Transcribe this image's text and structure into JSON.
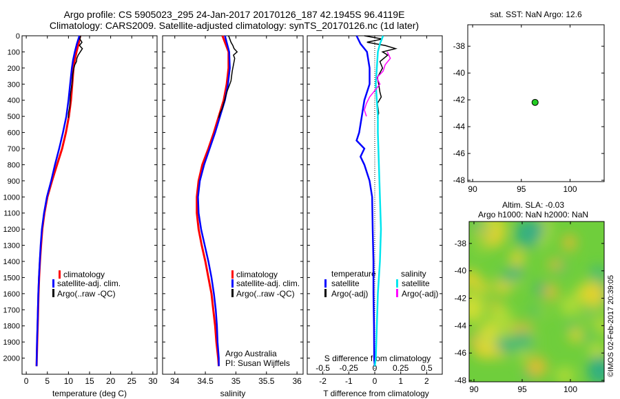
{
  "header": {
    "title_line1": "Argo profile: CS 5905023_295 24-Jan-2017 20170126_187 42.1945S 96.4119E",
    "title_line2": "Climatology: CARS2009. Satellite-adjusted climatology: synTS_20170126.nc (1d later)"
  },
  "panel_texts": {
    "argo_australia": "Argo Australia",
    "pi": "PI: Susan Wijffels",
    "s_diff_title": "S difference from climatology",
    "sst_title": "sat. SST: NaN Argo: 12.6",
    "sla_title_1": "Altim. SLA: -0.03",
    "sla_title_2": "Argo h1000: NaN h2000: NaN",
    "imos_stamp": "©IMOS 02-Feb-2017 20:39:05"
  },
  "colors": {
    "climatology": "#ff0000",
    "satellite": "#0000ff",
    "argo": "#000000",
    "sal_satellite": "#00e5ee",
    "sal_argo": "#ff00ff",
    "float_marker": "#22cc22"
  },
  "chart_data": [
    {
      "type": "line",
      "panel": "temperature",
      "xlabel": "temperature (deg C)",
      "ylabel": "",
      "xlim": [
        -1,
        31
      ],
      "ylim": [
        2100,
        0
      ],
      "xticks": [
        "0",
        "5",
        "10",
        "15",
        "20",
        "25",
        "30"
      ],
      "yticks": [
        "0",
        "100",
        "200",
        "300",
        "400",
        "500",
        "600",
        "700",
        "800",
        "900",
        "1000",
        "1100",
        "1200",
        "1300",
        "1400",
        "1500",
        "1600",
        "1700",
        "1800",
        "1900",
        "2000"
      ],
      "legend": [
        "climatology",
        "satellite-adj. clim.",
        "Argo(..raw -QC)"
      ],
      "series": [
        {
          "name": "climatology",
          "depth": [
            0,
            50,
            100,
            150,
            200,
            300,
            400,
            500,
            600,
            700,
            800,
            900,
            1000,
            1100,
            1200,
            1300,
            1400,
            1500,
            1600,
            1700,
            1800,
            1900,
            2000,
            2050
          ],
          "values": [
            12.8,
            12.4,
            11.9,
            11.5,
            11.2,
            10.9,
            10.6,
            10.1,
            9.4,
            8.5,
            7.3,
            6.1,
            5.0,
            4.3,
            3.8,
            3.5,
            3.25,
            3.05,
            2.9,
            2.8,
            2.7,
            2.6,
            2.5,
            2.45
          ]
        },
        {
          "name": "satellite-adj. clim.",
          "depth": [
            0,
            50,
            100,
            150,
            200,
            300,
            400,
            500,
            600,
            700,
            800,
            900,
            1000,
            1100,
            1200,
            1300,
            1400,
            1500,
            1600,
            1700,
            1800,
            1900,
            2000,
            2050
          ],
          "values": [
            12.6,
            12.0,
            11.5,
            11.1,
            10.8,
            10.4,
            10.0,
            9.5,
            8.7,
            7.8,
            6.8,
            5.9,
            4.9,
            4.2,
            3.7,
            3.4,
            3.2,
            3.0,
            2.85,
            2.75,
            2.65,
            2.55,
            2.48,
            2.45
          ]
        },
        {
          "name": "Argo(..raw -QC)",
          "depth": [
            0,
            20,
            40,
            60,
            80,
            100,
            120,
            140,
            160,
            180,
            200,
            240,
            280,
            320,
            360,
            400,
            440,
            480,
            510
          ],
          "values": [
            12.9,
            12.7,
            13.2,
            12.6,
            13.3,
            12.8,
            12.3,
            12.0,
            11.9,
            11.5,
            11.3,
            11.0,
            10.9,
            10.7,
            10.5,
            10.4,
            10.3,
            10.0,
            10.0
          ]
        }
      ]
    },
    {
      "type": "line",
      "panel": "salinity",
      "xlabel": "salinity",
      "ylabel": "",
      "xlim": [
        33.8,
        36.1
      ],
      "ylim": [
        2100,
        0
      ],
      "xticks": [
        "34",
        "34.5",
        "35",
        "35.5",
        "36"
      ],
      "legend": [
        "climatology",
        "satellite-adj. clim.",
        "Argo(..raw -QC)"
      ],
      "series": [
        {
          "name": "climatology",
          "depth": [
            0,
            100,
            200,
            300,
            400,
            500,
            600,
            700,
            800,
            900,
            1000,
            1100,
            1200,
            1300,
            1400,
            1500,
            1600,
            1700,
            1800,
            1900,
            2000,
            2050
          ],
          "values": [
            34.78,
            34.88,
            34.88,
            34.85,
            34.8,
            34.72,
            34.64,
            34.55,
            34.45,
            34.39,
            34.36,
            34.36,
            34.39,
            34.44,
            34.5,
            34.55,
            34.6,
            34.63,
            34.66,
            34.68,
            34.71,
            34.72
          ]
        },
        {
          "name": "satellite-adj. clim.",
          "depth": [
            0,
            100,
            200,
            300,
            400,
            500,
            600,
            700,
            800,
            900,
            1000,
            1100,
            1200,
            1300,
            1400,
            1500,
            1600,
            1700,
            1800,
            1900,
            2000,
            2050
          ],
          "values": [
            34.82,
            34.89,
            34.9,
            34.87,
            34.82,
            34.74,
            34.66,
            34.57,
            34.48,
            34.41,
            34.38,
            34.39,
            34.43,
            34.49,
            34.55,
            34.6,
            34.64,
            34.67,
            34.69,
            34.7,
            34.72,
            34.72
          ]
        },
        {
          "name": "Argo(..raw -QC)",
          "depth": [
            0,
            20,
            40,
            60,
            80,
            100,
            120,
            140,
            160,
            180,
            200,
            220,
            250,
            280,
            300,
            340,
            380,
            420,
            450,
            480,
            510
          ],
          "values": [
            34.88,
            34.9,
            34.92,
            34.95,
            34.97,
            35.02,
            34.96,
            34.98,
            34.97,
            34.96,
            34.95,
            34.94,
            34.93,
            34.92,
            34.9,
            34.86,
            34.83,
            34.8,
            34.78,
            34.74,
            34.72
          ]
        }
      ]
    },
    {
      "type": "line",
      "panel": "difference",
      "xlabel": "T difference from climatology",
      "top_label": "S difference from climatology",
      "ylabel": "",
      "xlim": [
        -2.6,
        2.6
      ],
      "ylim": [
        2100,
        0
      ],
      "xticks": [
        "-2",
        "-1",
        "0",
        "1",
        "2"
      ],
      "sal_xticks": [
        "-0.5",
        "-0.25",
        "0",
        "0.25",
        "0.5"
      ],
      "legend_groups": {
        "temperature": [
          "satellite",
          "Argo(-adj)"
        ],
        "salinity": [
          "satellite",
          "Argo(-adj)"
        ]
      },
      "series": [
        {
          "name": "temperature satellite",
          "depth": [
            0,
            50,
            100,
            150,
            200,
            300,
            400,
            500,
            600,
            650,
            700,
            750,
            800,
            900,
            1000,
            1200,
            1400,
            1600,
            1800,
            2000,
            2050
          ],
          "values": [
            -0.7,
            -0.55,
            -0.3,
            -0.25,
            -0.2,
            -0.2,
            -0.4,
            -0.5,
            -0.6,
            -0.7,
            -0.4,
            -0.55,
            -0.4,
            -0.2,
            -0.1,
            -0.08,
            -0.05,
            -0.05,
            -0.03,
            -0.02,
            0
          ]
        },
        {
          "name": "temperature Argo(-adj)",
          "depth": [
            0,
            20,
            40,
            60,
            80,
            100,
            120,
            160,
            200,
            260,
            300,
            350,
            380,
            420,
            480,
            510
          ],
          "values": [
            -0.4,
            0.3,
            -0.3,
            0.4,
            0.8,
            0.3,
            0.5,
            0.2,
            0.3,
            0.1,
            0.15,
            0.2,
            0.25,
            0.1,
            0.15,
            0.1
          ]
        },
        {
          "name": "salinity satellite",
          "depth": [
            0,
            50,
            100,
            200,
            300,
            400,
            500,
            600,
            800,
            1000,
            1200,
            1400,
            1600,
            1800,
            2000,
            2050
          ],
          "values": [
            0.08,
            0.05,
            0.03,
            0.02,
            0.01,
            0.02,
            0.03,
            0.03,
            0.04,
            0.05,
            0.06,
            0.05,
            0.03,
            0.02,
            0.01,
            0
          ]
        },
        {
          "name": "salinity Argo(-adj)",
          "depth": [
            100,
            140,
            180,
            220,
            260,
            300,
            340,
            380,
            420,
            460,
            500
          ],
          "values": [
            0.12,
            0.15,
            0.1,
            0.08,
            0.02,
            0.05,
            0.0,
            -0.05,
            -0.08,
            -0.1,
            -0.08
          ]
        }
      ]
    },
    {
      "type": "scatter",
      "panel": "location",
      "title": "sat. SST: NaN Argo: 12.6",
      "xlim": [
        89.5,
        103.5
      ],
      "ylim": [
        -48.1,
        -36.4
      ],
      "xticks": [
        "90",
        "95",
        "100"
      ],
      "yticks": [
        "-38",
        "-40",
        "-42",
        "-44",
        "-46",
        "-48"
      ],
      "points": [
        {
          "x": 96.41,
          "y": -42.19
        }
      ]
    },
    {
      "type": "heatmap",
      "panel": "sla",
      "title": "Altim. SLA: -0.03",
      "subtitle": "Argo h1000: NaN h2000: NaN",
      "xlim": [
        89.5,
        103.5
      ],
      "ylim": [
        -48.1,
        -36.4
      ],
      "xticks": [
        "90",
        "95",
        "100"
      ],
      "yticks": [
        "-38",
        "-40",
        "-42",
        "-44",
        "-46",
        "-48"
      ]
    }
  ]
}
